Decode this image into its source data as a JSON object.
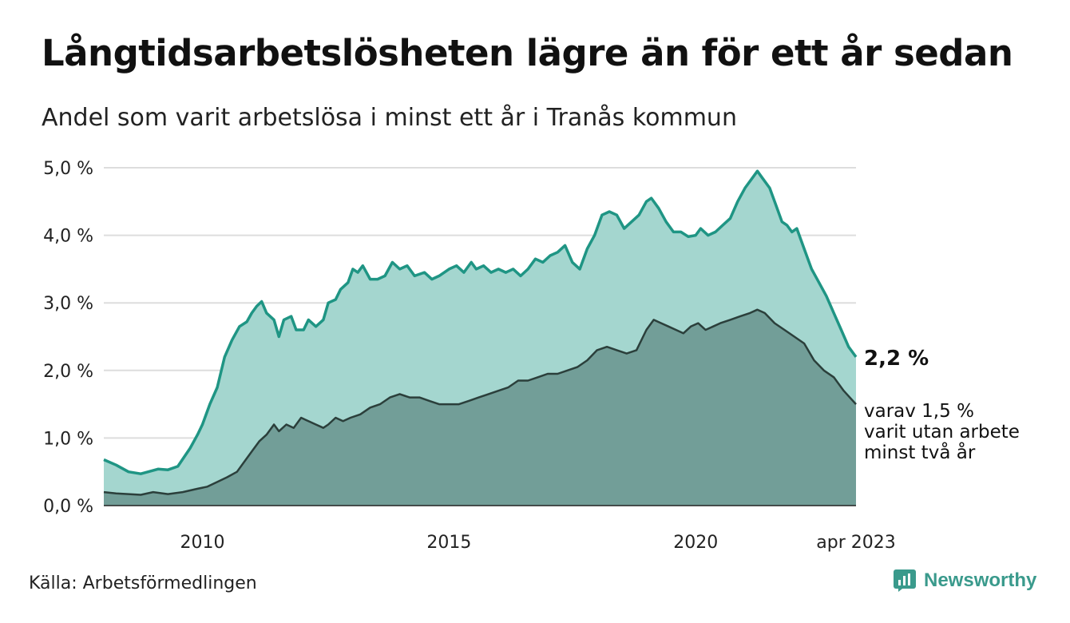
{
  "title": "Långtidsarbetslösheten lägre än för ett år sedan",
  "subtitle": "Andel som varit arbetslösa i minst ett år i Tranås kommun",
  "source": "Källa: Arbetsförmedlingen",
  "brand": {
    "name": "Newsworthy",
    "icon": "newsworthy-logo-icon",
    "color": "#3a9a8c"
  },
  "colors": {
    "upper_line": "#1f9584",
    "upper_fill": "#a4d6cf",
    "lower_line": "#2b3f3b",
    "lower_fill": "#729e98",
    "grid": "#dddddd"
  },
  "chart_data": {
    "type": "area",
    "x_start": 2008.0,
    "x_end": 2023.25,
    "ylim": [
      0,
      5
    ],
    "y_ticks": [
      0,
      1,
      2,
      3,
      4,
      5
    ],
    "y_tick_labels": [
      "0,0 %",
      "1,0 %",
      "2,0 %",
      "3,0 %",
      "4,0 %",
      "5,0 %"
    ],
    "x_ticks": [
      2010,
      2015,
      2020,
      2023.25
    ],
    "x_tick_labels": [
      "2010",
      "2015",
      "2020",
      "apr 2023"
    ],
    "grid": true,
    "series": [
      {
        "id": "min_ett_ar",
        "label": "2,2 %",
        "points": [
          [
            2008.0,
            0.68
          ],
          [
            2008.25,
            0.6
          ],
          [
            2008.5,
            0.5
          ],
          [
            2008.75,
            0.47
          ],
          [
            2008.9,
            0.5
          ],
          [
            2009.1,
            0.54
          ],
          [
            2009.3,
            0.53
          ],
          [
            2009.5,
            0.58
          ],
          [
            2009.75,
            0.85
          ],
          [
            2009.9,
            1.05
          ],
          [
            2010.0,
            1.2
          ],
          [
            2010.15,
            1.5
          ],
          [
            2010.3,
            1.75
          ],
          [
            2010.45,
            2.2
          ],
          [
            2010.6,
            2.45
          ],
          [
            2010.75,
            2.65
          ],
          [
            2010.9,
            2.72
          ],
          [
            2011.0,
            2.85
          ],
          [
            2011.1,
            2.95
          ],
          [
            2011.2,
            3.02
          ],
          [
            2011.3,
            2.85
          ],
          [
            2011.45,
            2.75
          ],
          [
            2011.55,
            2.5
          ],
          [
            2011.65,
            2.75
          ],
          [
            2011.8,
            2.8
          ],
          [
            2011.9,
            2.6
          ],
          [
            2012.05,
            2.6
          ],
          [
            2012.15,
            2.75
          ],
          [
            2012.3,
            2.65
          ],
          [
            2012.45,
            2.75
          ],
          [
            2012.55,
            3.0
          ],
          [
            2012.7,
            3.05
          ],
          [
            2012.8,
            3.2
          ],
          [
            2012.95,
            3.3
          ],
          [
            2013.05,
            3.5
          ],
          [
            2013.15,
            3.45
          ],
          [
            2013.25,
            3.55
          ],
          [
            2013.4,
            3.35
          ],
          [
            2013.55,
            3.35
          ],
          [
            2013.7,
            3.4
          ],
          [
            2013.85,
            3.6
          ],
          [
            2014.0,
            3.5
          ],
          [
            2014.15,
            3.55
          ],
          [
            2014.3,
            3.4
          ],
          [
            2014.5,
            3.45
          ],
          [
            2014.65,
            3.35
          ],
          [
            2014.8,
            3.4
          ],
          [
            2015.0,
            3.5
          ],
          [
            2015.15,
            3.55
          ],
          [
            2015.3,
            3.45
          ],
          [
            2015.45,
            3.6
          ],
          [
            2015.55,
            3.5
          ],
          [
            2015.7,
            3.55
          ],
          [
            2015.85,
            3.45
          ],
          [
            2016.0,
            3.5
          ],
          [
            2016.15,
            3.45
          ],
          [
            2016.3,
            3.5
          ],
          [
            2016.45,
            3.4
          ],
          [
            2016.6,
            3.5
          ],
          [
            2016.75,
            3.65
          ],
          [
            2016.9,
            3.6
          ],
          [
            2017.05,
            3.7
          ],
          [
            2017.2,
            3.75
          ],
          [
            2017.35,
            3.85
          ],
          [
            2017.5,
            3.6
          ],
          [
            2017.65,
            3.5
          ],
          [
            2017.8,
            3.8
          ],
          [
            2017.95,
            4.0
          ],
          [
            2018.1,
            4.3
          ],
          [
            2018.25,
            4.35
          ],
          [
            2018.4,
            4.3
          ],
          [
            2018.55,
            4.1
          ],
          [
            2018.7,
            4.2
          ],
          [
            2018.85,
            4.3
          ],
          [
            2019.0,
            4.5
          ],
          [
            2019.1,
            4.55
          ],
          [
            2019.25,
            4.4
          ],
          [
            2019.4,
            4.2
          ],
          [
            2019.55,
            4.05
          ],
          [
            2019.7,
            4.05
          ],
          [
            2019.85,
            3.98
          ],
          [
            2020.0,
            4.0
          ],
          [
            2020.1,
            4.1
          ],
          [
            2020.25,
            4.0
          ],
          [
            2020.4,
            4.05
          ],
          [
            2020.55,
            4.15
          ],
          [
            2020.7,
            4.25
          ],
          [
            2020.85,
            4.5
          ],
          [
            2021.0,
            4.7
          ],
          [
            2021.15,
            4.85
          ],
          [
            2021.25,
            4.95
          ],
          [
            2021.35,
            4.85
          ],
          [
            2021.5,
            4.7
          ],
          [
            2021.6,
            4.5
          ],
          [
            2021.75,
            4.2
          ],
          [
            2021.85,
            4.15
          ],
          [
            2021.95,
            4.05
          ],
          [
            2022.05,
            4.1
          ],
          [
            2022.2,
            3.8
          ],
          [
            2022.35,
            3.5
          ],
          [
            2022.5,
            3.3
          ],
          [
            2022.65,
            3.1
          ],
          [
            2022.8,
            2.85
          ],
          [
            2022.95,
            2.6
          ],
          [
            2023.1,
            2.35
          ],
          [
            2023.25,
            2.2
          ]
        ]
      },
      {
        "id": "min_tva_ar",
        "label_lines": [
          "varav 1,5 %",
          "varit utan arbete",
          "minst två år"
        ],
        "points": [
          [
            2008.0,
            0.2
          ],
          [
            2008.25,
            0.18
          ],
          [
            2008.5,
            0.17
          ],
          [
            2008.75,
            0.16
          ],
          [
            2009.0,
            0.2
          ],
          [
            2009.3,
            0.17
          ],
          [
            2009.6,
            0.2
          ],
          [
            2009.9,
            0.25
          ],
          [
            2010.1,
            0.28
          ],
          [
            2010.3,
            0.35
          ],
          [
            2010.5,
            0.42
          ],
          [
            2010.7,
            0.5
          ],
          [
            2010.85,
            0.65
          ],
          [
            2011.0,
            0.8
          ],
          [
            2011.15,
            0.95
          ],
          [
            2011.3,
            1.05
          ],
          [
            2011.45,
            1.2
          ],
          [
            2011.55,
            1.1
          ],
          [
            2011.7,
            1.2
          ],
          [
            2011.85,
            1.15
          ],
          [
            2012.0,
            1.3
          ],
          [
            2012.15,
            1.25
          ],
          [
            2012.3,
            1.2
          ],
          [
            2012.45,
            1.15
          ],
          [
            2012.55,
            1.2
          ],
          [
            2012.7,
            1.3
          ],
          [
            2012.85,
            1.25
          ],
          [
            2013.0,
            1.3
          ],
          [
            2013.2,
            1.35
          ],
          [
            2013.4,
            1.45
          ],
          [
            2013.6,
            1.5
          ],
          [
            2013.8,
            1.6
          ],
          [
            2014.0,
            1.65
          ],
          [
            2014.2,
            1.6
          ],
          [
            2014.4,
            1.6
          ],
          [
            2014.6,
            1.55
          ],
          [
            2014.8,
            1.5
          ],
          [
            2015.0,
            1.5
          ],
          [
            2015.2,
            1.5
          ],
          [
            2015.4,
            1.55
          ],
          [
            2015.6,
            1.6
          ],
          [
            2015.8,
            1.65
          ],
          [
            2016.0,
            1.7
          ],
          [
            2016.2,
            1.75
          ],
          [
            2016.4,
            1.85
          ],
          [
            2016.6,
            1.85
          ],
          [
            2016.8,
            1.9
          ],
          [
            2017.0,
            1.95
          ],
          [
            2017.2,
            1.95
          ],
          [
            2017.4,
            2.0
          ],
          [
            2017.6,
            2.05
          ],
          [
            2017.8,
            2.15
          ],
          [
            2018.0,
            2.3
          ],
          [
            2018.2,
            2.35
          ],
          [
            2018.4,
            2.3
          ],
          [
            2018.6,
            2.25
          ],
          [
            2018.8,
            2.3
          ],
          [
            2019.0,
            2.6
          ],
          [
            2019.15,
            2.75
          ],
          [
            2019.3,
            2.7
          ],
          [
            2019.45,
            2.65
          ],
          [
            2019.6,
            2.6
          ],
          [
            2019.75,
            2.55
          ],
          [
            2019.9,
            2.65
          ],
          [
            2020.05,
            2.7
          ],
          [
            2020.2,
            2.6
          ],
          [
            2020.35,
            2.65
          ],
          [
            2020.5,
            2.7
          ],
          [
            2020.7,
            2.75
          ],
          [
            2020.9,
            2.8
          ],
          [
            2021.1,
            2.85
          ],
          [
            2021.25,
            2.9
          ],
          [
            2021.4,
            2.85
          ],
          [
            2021.6,
            2.7
          ],
          [
            2021.8,
            2.6
          ],
          [
            2022.0,
            2.5
          ],
          [
            2022.2,
            2.4
          ],
          [
            2022.4,
            2.15
          ],
          [
            2022.6,
            2.0
          ],
          [
            2022.8,
            1.9
          ],
          [
            2023.0,
            1.7
          ],
          [
            2023.25,
            1.5
          ]
        ]
      }
    ]
  }
}
